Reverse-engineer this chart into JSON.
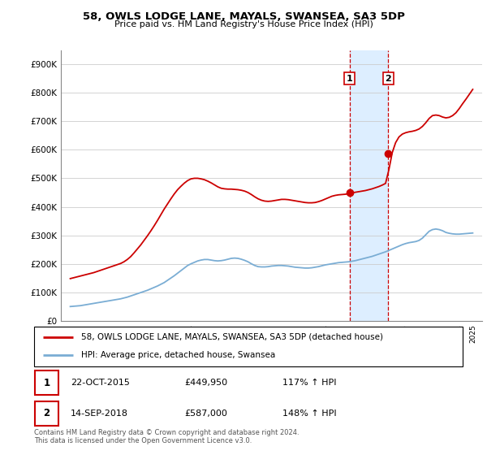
{
  "title": "58, OWLS LODGE LANE, MAYALS, SWANSEA, SA3 5DP",
  "subtitle": "Price paid vs. HM Land Registry's House Price Index (HPI)",
  "ylim": [
    0,
    950000
  ],
  "yticks": [
    0,
    100000,
    200000,
    300000,
    400000,
    500000,
    600000,
    700000,
    800000,
    900000
  ],
  "ytick_labels": [
    "£0",
    "£100K",
    "£200K",
    "£300K",
    "£400K",
    "£500K",
    "£600K",
    "£700K",
    "£800K",
    "£900K"
  ],
  "sale1_price": 449950,
  "sale2_price": 587000,
  "property_color": "#cc0000",
  "hpi_color": "#7aadd4",
  "shaded_region_color": "#ddeeff",
  "sale1_x": 2015.81,
  "sale2_x": 2018.71,
  "xlim": [
    1994.3,
    2025.7
  ],
  "legend_property_label": "58, OWLS LODGE LANE, MAYALS, SWANSEA, SA3 5DP (detached house)",
  "legend_hpi_label": "HPI: Average price, detached house, Swansea",
  "footnote": "Contains HM Land Registry data © Crown copyright and database right 2024.\nThis data is licensed under the Open Government Licence v3.0.",
  "table_rows": [
    {
      "num": "1",
      "date": "22-OCT-2015",
      "price": "£449,950",
      "hpi": "117% ↑ HPI"
    },
    {
      "num": "2",
      "date": "14-SEP-2018",
      "price": "£587,000",
      "hpi": "148% ↑ HPI"
    }
  ],
  "hpi_years": [
    1995.0,
    1995.25,
    1995.5,
    1995.75,
    1996.0,
    1996.25,
    1996.5,
    1996.75,
    1997.0,
    1997.25,
    1997.5,
    1997.75,
    1998.0,
    1998.25,
    1998.5,
    1998.75,
    1999.0,
    1999.25,
    1999.5,
    1999.75,
    2000.0,
    2000.25,
    2000.5,
    2000.75,
    2001.0,
    2001.25,
    2001.5,
    2001.75,
    2002.0,
    2002.25,
    2002.5,
    2002.75,
    2003.0,
    2003.25,
    2003.5,
    2003.75,
    2004.0,
    2004.25,
    2004.5,
    2004.75,
    2005.0,
    2005.25,
    2005.5,
    2005.75,
    2006.0,
    2006.25,
    2006.5,
    2006.75,
    2007.0,
    2007.25,
    2007.5,
    2007.75,
    2008.0,
    2008.25,
    2008.5,
    2008.75,
    2009.0,
    2009.25,
    2009.5,
    2009.75,
    2010.0,
    2010.25,
    2010.5,
    2010.75,
    2011.0,
    2011.25,
    2011.5,
    2011.75,
    2012.0,
    2012.25,
    2012.5,
    2012.75,
    2013.0,
    2013.25,
    2013.5,
    2013.75,
    2014.0,
    2014.25,
    2014.5,
    2014.75,
    2015.0,
    2015.25,
    2015.5,
    2015.75,
    2016.0,
    2016.25,
    2016.5,
    2016.75,
    2017.0,
    2017.25,
    2017.5,
    2017.75,
    2018.0,
    2018.25,
    2018.5,
    2018.75,
    2019.0,
    2019.25,
    2019.5,
    2019.75,
    2020.0,
    2020.25,
    2020.5,
    2020.75,
    2021.0,
    2021.25,
    2021.5,
    2021.75,
    2022.0,
    2022.25,
    2022.5,
    2022.75,
    2023.0,
    2023.25,
    2023.5,
    2023.75,
    2024.0,
    2024.25,
    2024.5,
    2024.75,
    2025.0
  ],
  "hpi_values": [
    50000,
    51000,
    52000,
    53000,
    55000,
    57000,
    59000,
    61000,
    63000,
    65000,
    67000,
    69000,
    71000,
    73000,
    75000,
    77000,
    80000,
    83000,
    87000,
    91000,
    95000,
    99000,
    103000,
    107000,
    112000,
    117000,
    122000,
    128000,
    134000,
    142000,
    150000,
    158000,
    167000,
    176000,
    185000,
    194000,
    200000,
    205000,
    210000,
    213000,
    215000,
    215000,
    213000,
    211000,
    210000,
    211000,
    213000,
    216000,
    219000,
    220000,
    219000,
    216000,
    212000,
    207000,
    200000,
    194000,
    190000,
    189000,
    189000,
    190000,
    192000,
    193000,
    194000,
    194000,
    193000,
    192000,
    190000,
    188000,
    187000,
    186000,
    185000,
    185000,
    186000,
    188000,
    190000,
    193000,
    196000,
    198000,
    200000,
    202000,
    204000,
    205000,
    206000,
    207000,
    209000,
    211000,
    214000,
    217000,
    220000,
    223000,
    226000,
    230000,
    234000,
    238000,
    242000,
    247000,
    252000,
    257000,
    262000,
    267000,
    271000,
    274000,
    276000,
    278000,
    282000,
    290000,
    302000,
    314000,
    320000,
    322000,
    320000,
    316000,
    310000,
    307000,
    305000,
    304000,
    304000,
    305000,
    306000,
    307000,
    308000
  ],
  "prop_years": [
    1995.0,
    1995.25,
    1995.5,
    1995.75,
    1996.0,
    1996.25,
    1996.5,
    1996.75,
    1997.0,
    1997.25,
    1997.5,
    1997.75,
    1998.0,
    1998.25,
    1998.5,
    1998.75,
    1999.0,
    1999.25,
    1999.5,
    1999.75,
    2000.0,
    2000.25,
    2000.5,
    2000.75,
    2001.0,
    2001.25,
    2001.5,
    2001.75,
    2002.0,
    2002.25,
    2002.5,
    2002.75,
    2003.0,
    2003.25,
    2003.5,
    2003.75,
    2004.0,
    2004.25,
    2004.5,
    2004.75,
    2005.0,
    2005.25,
    2005.5,
    2005.75,
    2006.0,
    2006.25,
    2006.5,
    2006.75,
    2007.0,
    2007.25,
    2007.5,
    2007.75,
    2008.0,
    2008.25,
    2008.5,
    2008.75,
    2009.0,
    2009.25,
    2009.5,
    2009.75,
    2010.0,
    2010.25,
    2010.5,
    2010.75,
    2011.0,
    2011.25,
    2011.5,
    2011.75,
    2012.0,
    2012.25,
    2012.5,
    2012.75,
    2013.0,
    2013.25,
    2013.5,
    2013.75,
    2014.0,
    2014.25,
    2014.5,
    2014.75,
    2015.0,
    2015.25,
    2015.5,
    2015.75,
    2016.0,
    2016.25,
    2016.5,
    2016.75,
    2017.0,
    2017.25,
    2017.5,
    2017.75,
    2018.0,
    2018.25,
    2018.5,
    2018.75,
    2019.0,
    2019.25,
    2019.5,
    2019.75,
    2020.0,
    2020.25,
    2020.5,
    2020.75,
    2021.0,
    2021.25,
    2021.5,
    2021.75,
    2022.0,
    2022.25,
    2022.5,
    2022.75,
    2023.0,
    2023.25,
    2023.5,
    2023.75,
    2024.0,
    2024.25,
    2024.5,
    2024.75,
    2025.0
  ],
  "prop_values": [
    148000,
    151000,
    154000,
    157000,
    160000,
    163000,
    166000,
    169000,
    173000,
    177000,
    181000,
    185000,
    189000,
    193000,
    197000,
    201000,
    207000,
    215000,
    225000,
    238000,
    252000,
    266000,
    282000,
    298000,
    315000,
    333000,
    352000,
    372000,
    392000,
    410000,
    428000,
    445000,
    460000,
    472000,
    483000,
    492000,
    498000,
    500000,
    500000,
    498000,
    495000,
    490000,
    484000,
    477000,
    470000,
    465000,
    463000,
    462000,
    462000,
    461000,
    460000,
    458000,
    455000,
    450000,
    443000,
    435000,
    428000,
    423000,
    420000,
    419000,
    420000,
    422000,
    424000,
    426000,
    426000,
    425000,
    423000,
    421000,
    419000,
    417000,
    415000,
    414000,
    414000,
    415000,
    418000,
    422000,
    427000,
    432000,
    437000,
    440000,
    442000,
    443000,
    444000,
    446000,
    449000,
    451000,
    453000,
    455000,
    457000,
    460000,
    463000,
    467000,
    471000,
    476000,
    482000,
    530000,
    590000,
    625000,
    645000,
    655000,
    660000,
    663000,
    665000,
    668000,
    673000,
    682000,
    695000,
    710000,
    720000,
    722000,
    720000,
    715000,
    712000,
    714000,
    720000,
    730000,
    745000,
    762000,
    778000,
    795000,
    812000
  ]
}
